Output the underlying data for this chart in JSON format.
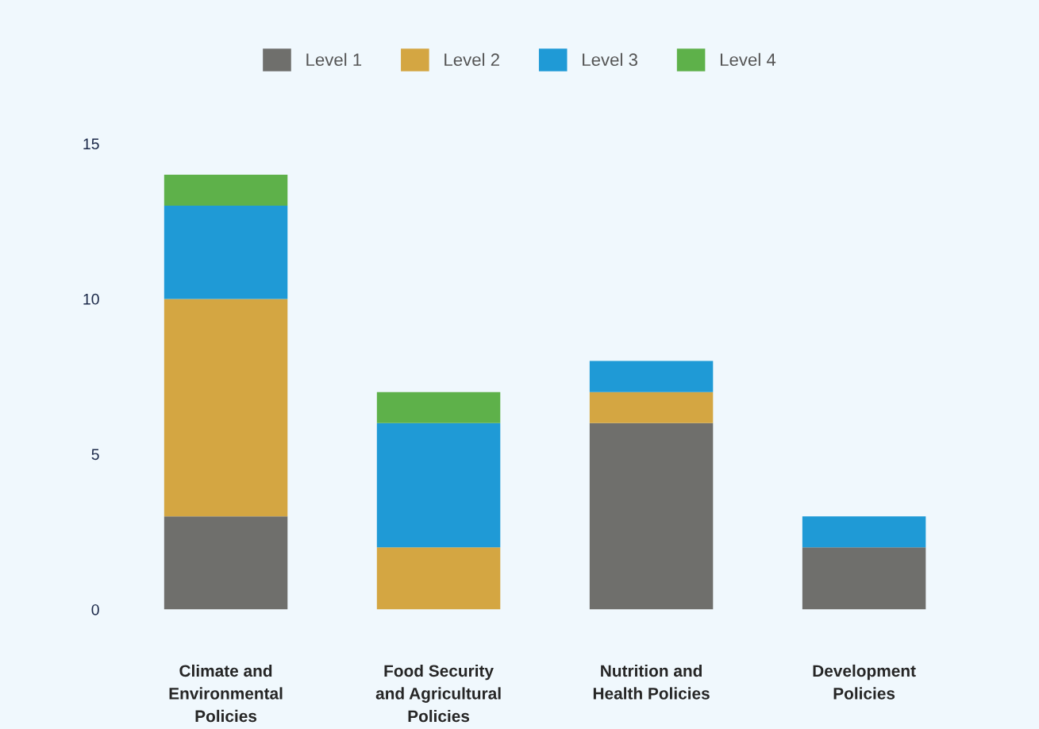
{
  "chart_data": {
    "type": "bar",
    "stacked": true,
    "categories": [
      "Climate and\nEnvironmental\nPolicies",
      "Food Security\nand Agricultural\nPolicies",
      "Nutrition and\nHealth Policies",
      "Development\nPolicies"
    ],
    "series": [
      {
        "name": "Level 1",
        "color": "#6f6f6c",
        "values": [
          3,
          0,
          6,
          2
        ]
      },
      {
        "name": "Level 2",
        "color": "#d4a642",
        "values": [
          7,
          2,
          1,
          0
        ]
      },
      {
        "name": "Level 3",
        "color": "#1f9ad6",
        "values": [
          3,
          4,
          1,
          1
        ]
      },
      {
        "name": "Level 4",
        "color": "#5eb14a",
        "values": [
          1,
          1,
          0,
          0
        ]
      }
    ],
    "ylim": [
      0,
      15
    ],
    "yticks": [
      0,
      5,
      10,
      15
    ],
    "grid": false,
    "legend": "top"
  }
}
